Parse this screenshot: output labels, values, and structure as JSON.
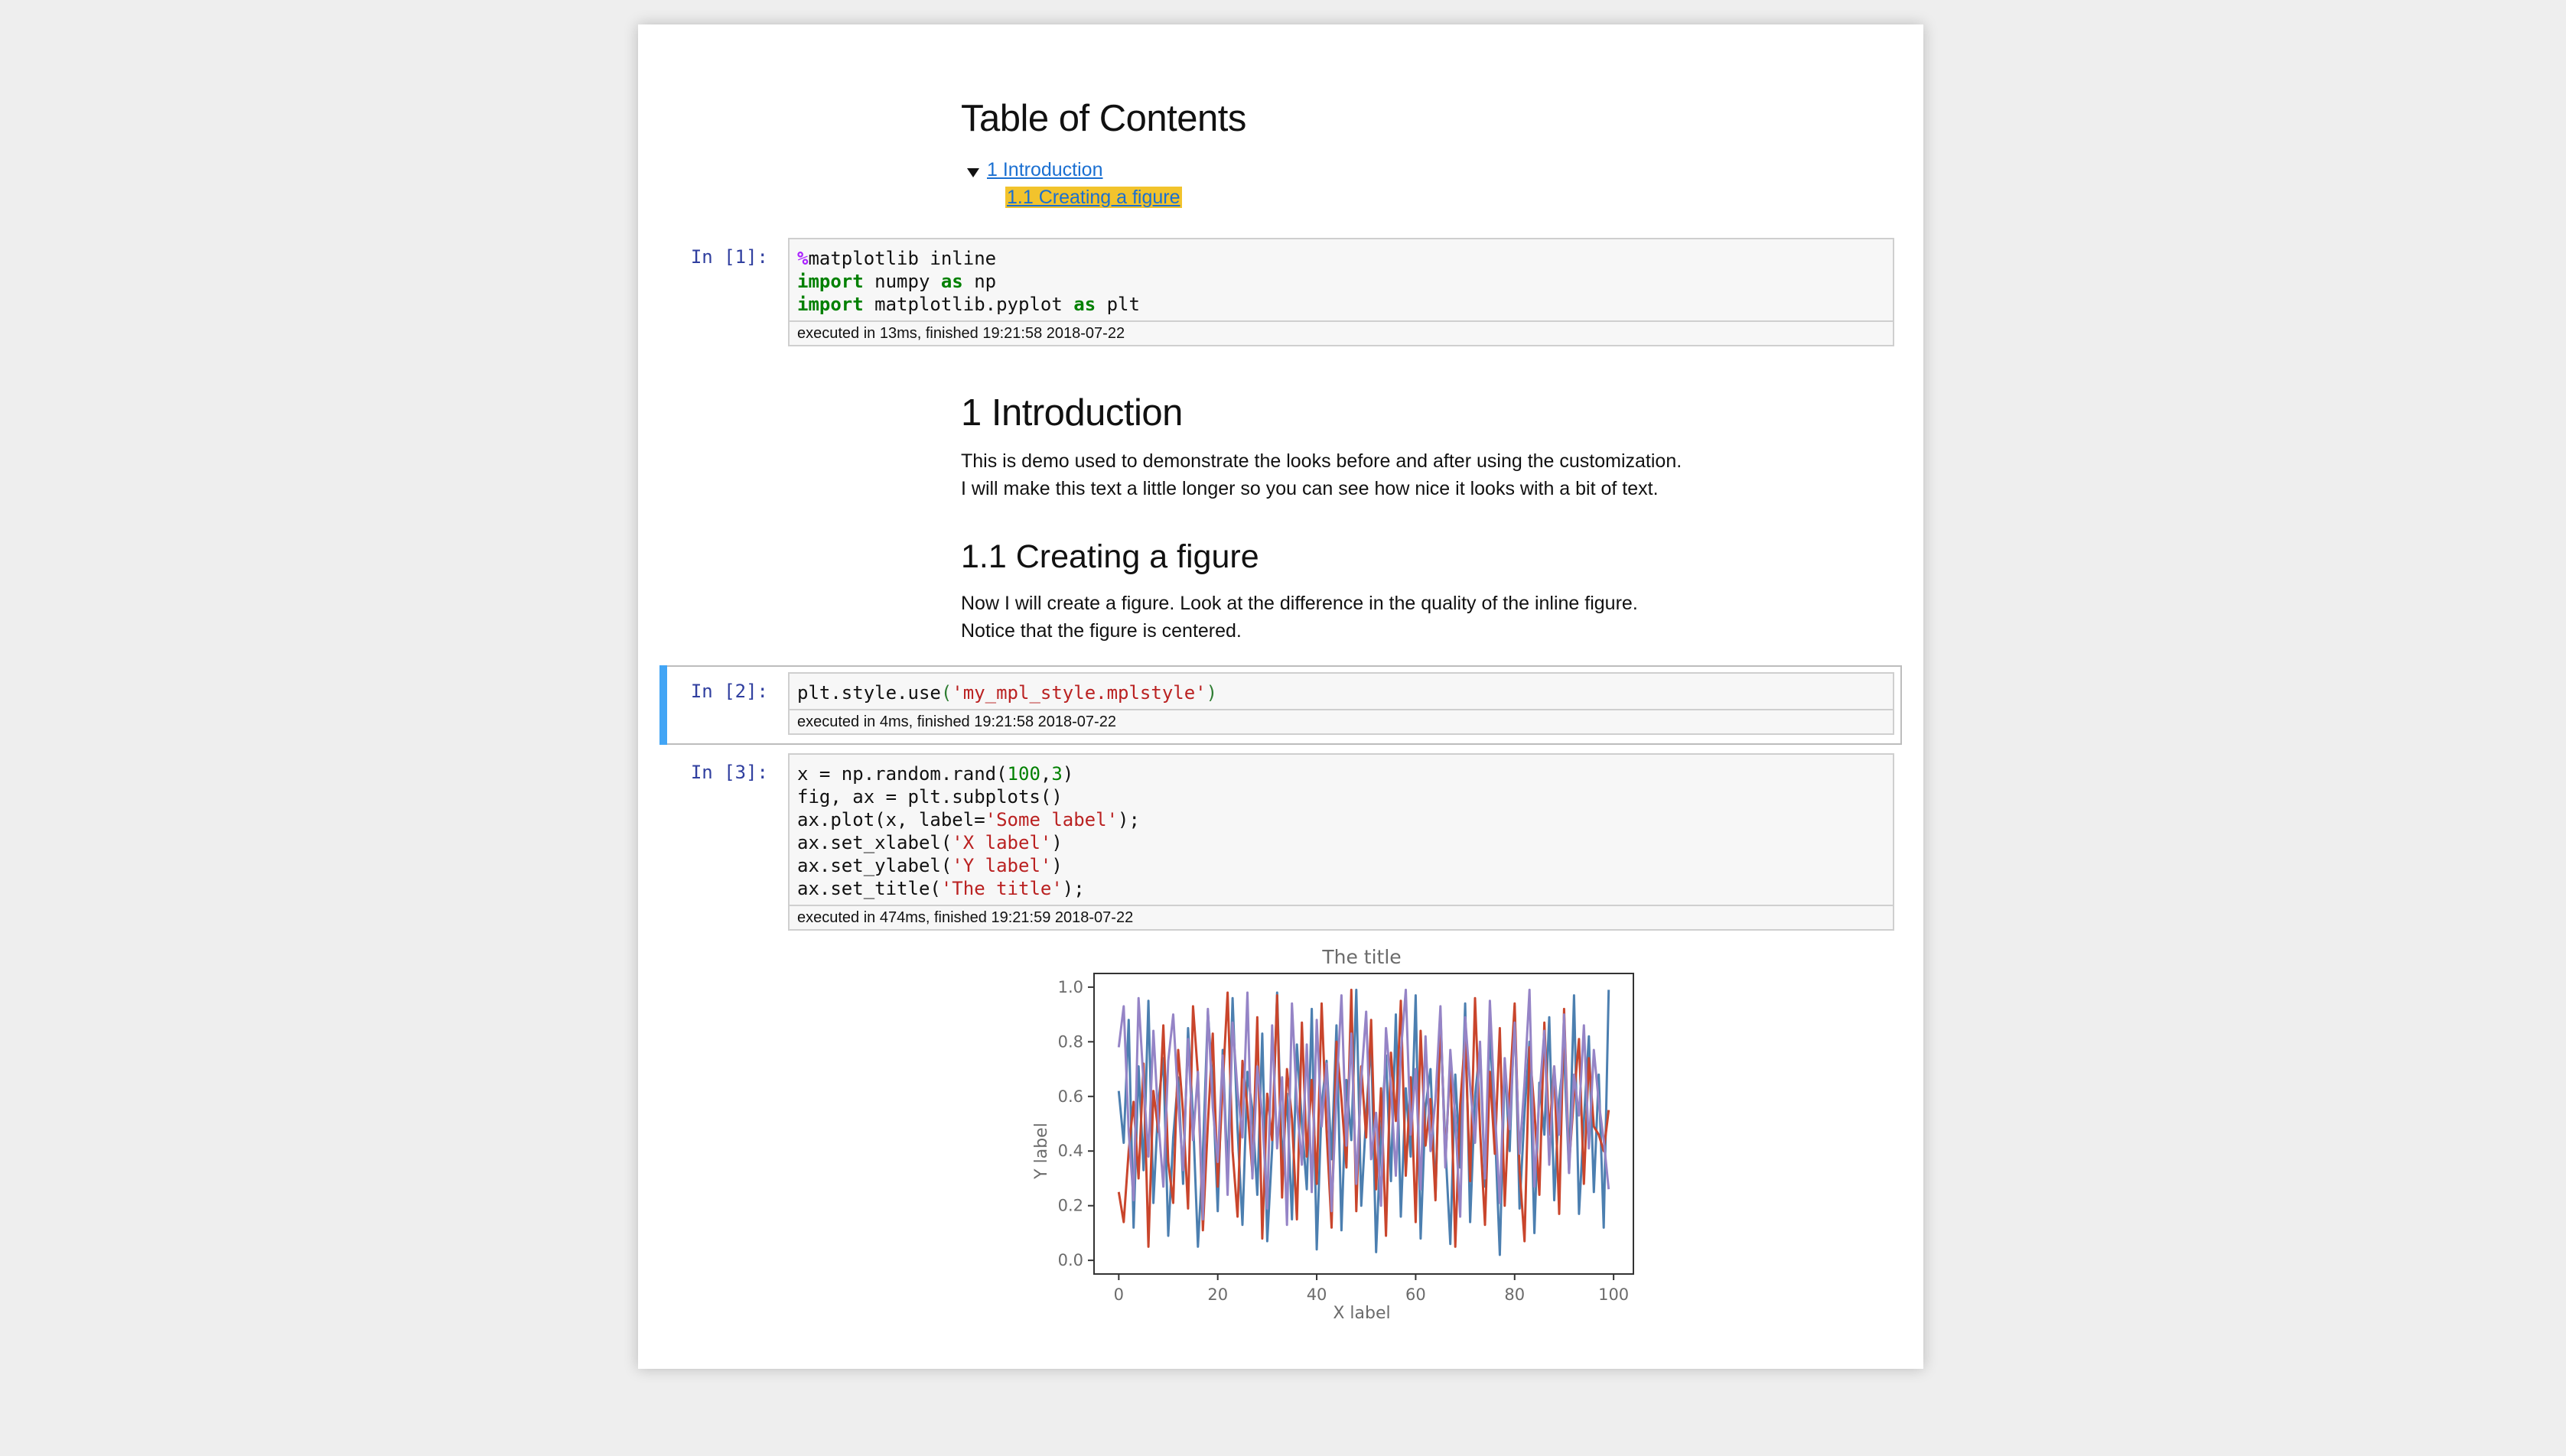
{
  "toc": {
    "title": "Table of Contents",
    "items": [
      {
        "label": "1  Introduction"
      },
      {
        "label": "1.1  Creating a figure"
      }
    ]
  },
  "cells": [
    {
      "prompt": "In [1]:",
      "code": [
        [
          {
            "t": "%",
            "c": "mg"
          },
          {
            "t": "matplotlib inline"
          }
        ],
        [
          {
            "t": "import",
            "c": "kw"
          },
          {
            "t": " numpy "
          },
          {
            "t": "as",
            "c": "kw"
          },
          {
            "t": " np"
          }
        ],
        [
          {
            "t": "import",
            "c": "kw"
          },
          {
            "t": " matplotlib.pyplot "
          },
          {
            "t": "as",
            "c": "kw"
          },
          {
            "t": " plt"
          }
        ]
      ],
      "exec": "executed in 13ms, finished 19:21:58 2018-07-22"
    },
    {
      "prompt": "In [2]:",
      "code": [
        [
          {
            "t": "plt.style.use"
          },
          {
            "t": "(",
            "c": "pn"
          },
          {
            "t": "'my_mpl_style.mplstyle'",
            "c": "st"
          },
          {
            "t": ")",
            "c": "pn"
          }
        ]
      ],
      "exec": "executed in 4ms, finished 19:21:58 2018-07-22"
    },
    {
      "prompt": "In [3]:",
      "code": [
        [
          {
            "t": "x = np.random.rand("
          },
          {
            "t": "100",
            "c": "nm"
          },
          {
            "t": ","
          },
          {
            "t": "3",
            "c": "nm"
          },
          {
            "t": ")"
          }
        ],
        [
          {
            "t": "fig, ax = plt.subplots()"
          }
        ],
        [
          {
            "t": "ax.plot(x, label="
          },
          {
            "t": "'Some label'",
            "c": "st"
          },
          {
            "t": ");"
          }
        ],
        [
          {
            "t": "ax.set_xlabel("
          },
          {
            "t": "'X label'",
            "c": "st"
          },
          {
            "t": ")"
          }
        ],
        [
          {
            "t": "ax.set_ylabel("
          },
          {
            "t": "'Y label'",
            "c": "st"
          },
          {
            "t": ")"
          }
        ],
        [
          {
            "t": "ax.set_title("
          },
          {
            "t": "'The title'",
            "c": "st"
          },
          {
            "t": ");"
          }
        ]
      ],
      "exec": "executed in 474ms, finished 19:21:59 2018-07-22"
    }
  ],
  "intro": {
    "heading": "1  Introduction",
    "lines": [
      "This is demo used to demonstrate the looks before and after using the customization.",
      "I will make this text a little longer so you can see how nice it looks with a bit of text."
    ]
  },
  "figure_section": {
    "heading": "1.1  Creating a figure",
    "lines": [
      "Now I will create a figure. Look at the difference in the quality of the inline figure.",
      "Notice that the figure is centered."
    ]
  },
  "chart_data": {
    "type": "line",
    "title": "The title",
    "xlabel": "X label",
    "ylabel": "Y label",
    "xlim": [
      -5,
      104
    ],
    "ylim": [
      -0.05,
      1.05
    ],
    "xticks": [
      "0",
      "20",
      "40",
      "60",
      "80",
      "100"
    ],
    "yticks": [
      "0.0",
      "0.2",
      "0.4",
      "0.6",
      "0.8",
      "1.0"
    ],
    "x": [
      0,
      1,
      2,
      3,
      4,
      5,
      6,
      7,
      8,
      9,
      10,
      11,
      12,
      13,
      14,
      15,
      16,
      17,
      18,
      19,
      20,
      21,
      22,
      23,
      24,
      25,
      26,
      27,
      28,
      29,
      30,
      31,
      32,
      33,
      34,
      35,
      36,
      37,
      38,
      39,
      40,
      41,
      42,
      43,
      44,
      45,
      46,
      47,
      48,
      49,
      50,
      51,
      52,
      53,
      54,
      55,
      56,
      57,
      58,
      59,
      60,
      61,
      62,
      63,
      64,
      65,
      66,
      67,
      68,
      69,
      70,
      71,
      72,
      73,
      74,
      75,
      76,
      77,
      78,
      79,
      80,
      81,
      82,
      83,
      84,
      85,
      86,
      87,
      88,
      89,
      90,
      91,
      92,
      93,
      94,
      95,
      96,
      97,
      98,
      99
    ],
    "series": [
      {
        "color": "#4c7fb0",
        "values": [
          0.62,
          0.43,
          0.88,
          0.12,
          0.71,
          0.33,
          0.95,
          0.21,
          0.58,
          0.74,
          0.09,
          0.45,
          0.67,
          0.28,
          0.85,
          0.52,
          0.05,
          0.39,
          0.91,
          0.64,
          0.18,
          0.77,
          0.31,
          0.96,
          0.48,
          0.13,
          0.69,
          0.55,
          0.24,
          0.83,
          0.07,
          0.41,
          0.98,
          0.35,
          0.61,
          0.15,
          0.79,
          0.5,
          0.26,
          0.92,
          0.04,
          0.57,
          0.73,
          0.37,
          0.86,
          0.11,
          0.66,
          0.44,
          0.99,
          0.2,
          0.53,
          0.81,
          0.03,
          0.47,
          0.75,
          0.29,
          0.9,
          0.16,
          0.63,
          0.38,
          0.97,
          0.08,
          0.56,
          0.7,
          0.23,
          0.87,
          0.42,
          0.06,
          0.68,
          0.34,
          0.94,
          0.14,
          0.6,
          0.78,
          0.27,
          0.84,
          0.49,
          0.02,
          0.72,
          0.4,
          0.93,
          0.19,
          0.54,
          0.8,
          0.1,
          0.65,
          0.46,
          0.89,
          0.22,
          0.59,
          0.76,
          0.32,
          0.97,
          0.17,
          0.51,
          0.82,
          0.25,
          0.68,
          0.12,
          0.99
        ]
      },
      {
        "color": "#c9452c",
        "values": [
          0.25,
          0.14,
          0.4,
          0.58,
          0.3,
          0.72,
          0.05,
          0.62,
          0.47,
          0.86,
          0.36,
          0.21,
          0.77,
          0.54,
          0.19,
          0.93,
          0.68,
          0.11,
          0.5,
          0.83,
          0.27,
          0.64,
          0.98,
          0.4,
          0.16,
          0.73,
          0.56,
          0.32,
          0.89,
          0.08,
          0.61,
          0.44,
          0.97,
          0.23,
          0.7,
          0.52,
          0.15,
          0.87,
          0.38,
          0.66,
          0.28,
          0.94,
          0.47,
          0.12,
          0.8,
          0.59,
          0.34,
          0.99,
          0.18,
          0.71,
          0.45,
          0.88,
          0.26,
          0.63,
          0.09,
          0.76,
          0.51,
          0.95,
          0.31,
          0.67,
          0.14,
          0.84,
          0.42,
          0.59,
          0.22,
          0.91,
          0.36,
          0.73,
          0.05,
          0.57,
          0.82,
          0.29,
          0.96,
          0.48,
          0.13,
          0.69,
          0.39,
          0.85,
          0.2,
          0.62,
          0.94,
          0.33,
          0.07,
          0.78,
          0.55,
          0.24,
          0.87,
          0.46,
          0.71,
          0.17,
          0.92,
          0.35,
          0.6,
          0.81,
          0.28,
          0.74,
          0.49,
          0.46,
          0.4,
          0.55
        ]
      },
      {
        "color": "#9584c6",
        "values": [
          0.78,
          0.93,
          0.47,
          0.22,
          0.96,
          0.65,
          0.38,
          0.84,
          0.51,
          0.27,
          0.73,
          0.9,
          0.58,
          0.33,
          0.81,
          0.44,
          0.69,
          0.15,
          0.92,
          0.56,
          0.36,
          0.75,
          0.24,
          0.87,
          0.62,
          0.45,
          0.98,
          0.3,
          0.71,
          0.53,
          0.19,
          0.86,
          0.41,
          0.67,
          0.13,
          0.94,
          0.57,
          0.35,
          0.79,
          0.25,
          0.88,
          0.49,
          0.72,
          0.18,
          0.61,
          0.97,
          0.42,
          0.83,
          0.28,
          0.66,
          0.91,
          0.37,
          0.54,
          0.2,
          0.85,
          0.63,
          0.31,
          0.76,
          0.99,
          0.46,
          0.7,
          0.26,
          0.82,
          0.4,
          0.59,
          0.93,
          0.34,
          0.77,
          0.52,
          0.16,
          0.89,
          0.64,
          0.43,
          0.8,
          0.3,
          0.95,
          0.55,
          0.21,
          0.74,
          0.48,
          0.87,
          0.39,
          0.65,
          0.99,
          0.27,
          0.6,
          0.84,
          0.35,
          0.71,
          0.46,
          0.9,
          0.32,
          0.68,
          0.53,
          0.86,
          0.41,
          0.77,
          0.58,
          0.44,
          0.26
        ]
      }
    ]
  }
}
